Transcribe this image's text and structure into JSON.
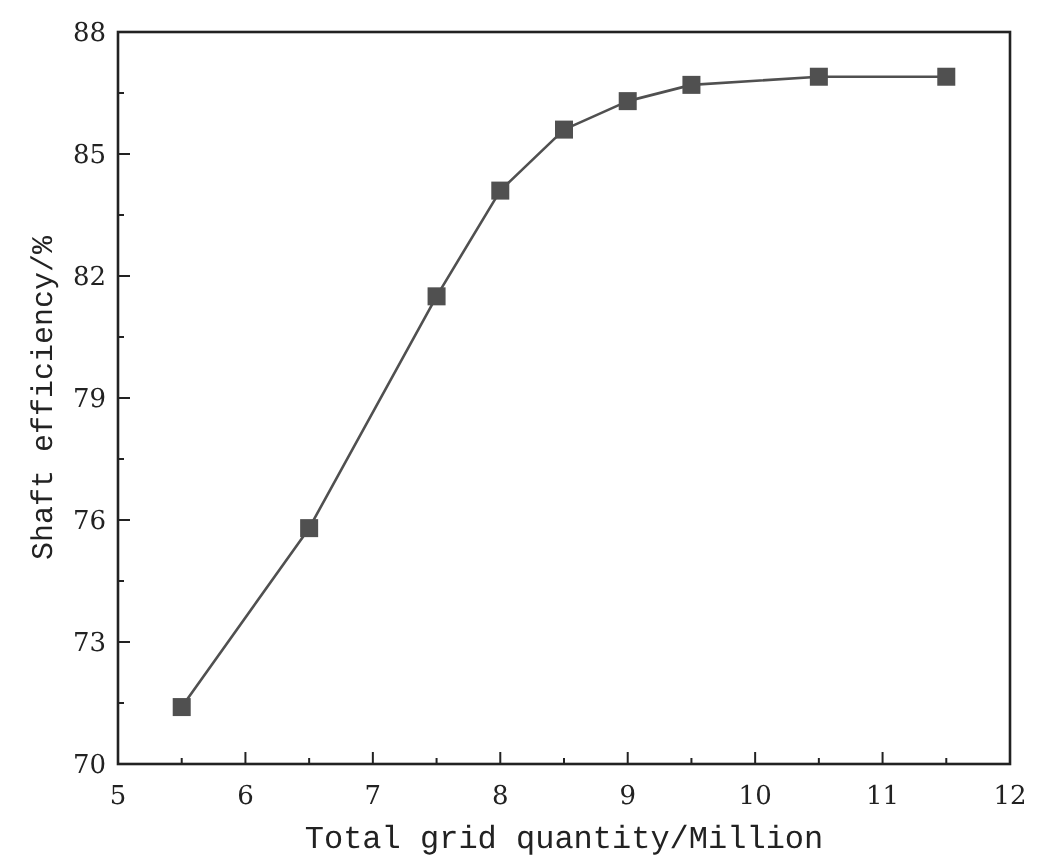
{
  "chart_data": {
    "type": "line",
    "xlabel": "Total grid quantity/Million",
    "ylabel": "Shaft efficiency/%",
    "x": [
      5.5,
      6.5,
      7.5,
      8,
      8.5,
      9,
      9.5,
      10.5,
      11.5
    ],
    "series": [
      {
        "color": "#505050",
        "values": [
          71.4,
          75.8,
          81.5,
          84.1,
          85.6,
          86.3,
          86.7,
          86.9,
          86.9
        ]
      }
    ],
    "xlim": [
      5,
      12
    ],
    "xticks": [
      5,
      6,
      7,
      8,
      9,
      10,
      11,
      12
    ],
    "ylim": [
      70,
      88
    ],
    "yticks": [
      70,
      73,
      76,
      79,
      82,
      85,
      88
    ],
    "marker": "square",
    "line_style": "solid"
  }
}
